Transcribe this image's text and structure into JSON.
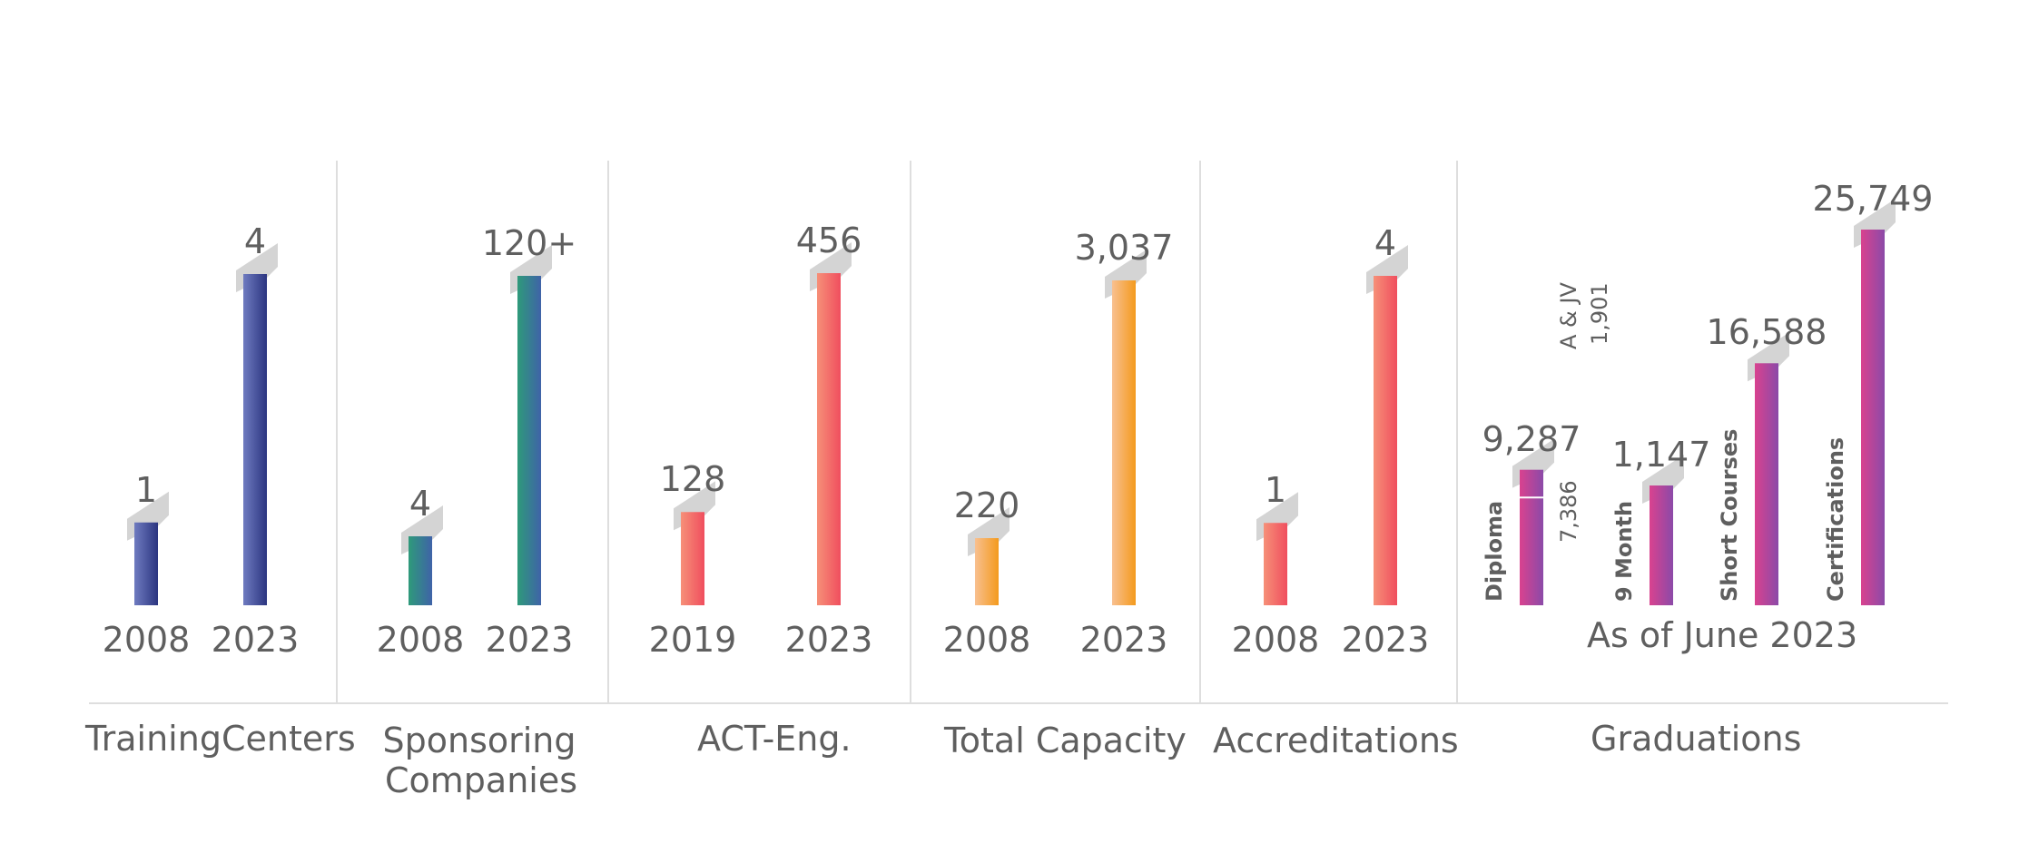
{
  "colors": {
    "navy_dark": "#2b3580",
    "navy_light": "#6f7bc0",
    "green_dark": "#2e9a7a",
    "green_light": "#3f63a8",
    "coral_dark": "#f04e5e",
    "coral_light": "#f69078",
    "orange_dark": "#f49a1d",
    "orange_light": "#f8c090",
    "magenta_dark": "#d9428f",
    "magenta_light": "#8b4aa8",
    "shadow": "#d4d4d4",
    "text": "#5f5f5f",
    "rule": "#dedede"
  },
  "groups": {
    "training_centers": "Training Centers",
    "sponsoring_companies": [
      "Sponsoring",
      "Companies"
    ],
    "act_eng": "ACT-Eng.",
    "total_capacity": "Total Capacity",
    "accreditations": "Accreditations",
    "graduations": "Graduations"
  },
  "note": "As of June 2023",
  "chart_data": [
    {
      "type": "bar",
      "title": "Training Centers",
      "categories": [
        "2008",
        "2023"
      ],
      "values": [
        1,
        4
      ],
      "value_labels": [
        "1",
        "4"
      ]
    },
    {
      "type": "bar",
      "title": "Sponsoring Companies",
      "categories": [
        "2008",
        "2023"
      ],
      "values": [
        4,
        120
      ],
      "value_labels": [
        "4",
        "120+"
      ]
    },
    {
      "type": "bar",
      "title": "ACT-Eng.",
      "categories": [
        "2019",
        "2023"
      ],
      "values": [
        128,
        456
      ],
      "value_labels": [
        "128",
        "456"
      ]
    },
    {
      "type": "bar",
      "title": "Total Capacity",
      "categories": [
        "2008",
        "2023"
      ],
      "values": [
        220,
        3037
      ],
      "value_labels": [
        "220",
        "3,037"
      ]
    },
    {
      "type": "bar",
      "title": "Accreditations",
      "categories": [
        "2008",
        "2023"
      ],
      "values": [
        1,
        4
      ],
      "value_labels": [
        "1",
        "4"
      ]
    },
    {
      "type": "bar",
      "title": "Graduations",
      "categories": [
        "Diploma",
        "9 Month",
        "Short Courses",
        "Certifications"
      ],
      "values": [
        9287,
        1147,
        16588,
        25749
      ],
      "value_labels": [
        "9,287",
        "1,147",
        "16,588",
        "25,749"
      ],
      "diploma_breakdown": [
        {
          "label": "7,386",
          "value": 7386
        },
        {
          "label": "A & JV",
          "value_label": "1,901",
          "value": 1901
        }
      ]
    }
  ]
}
